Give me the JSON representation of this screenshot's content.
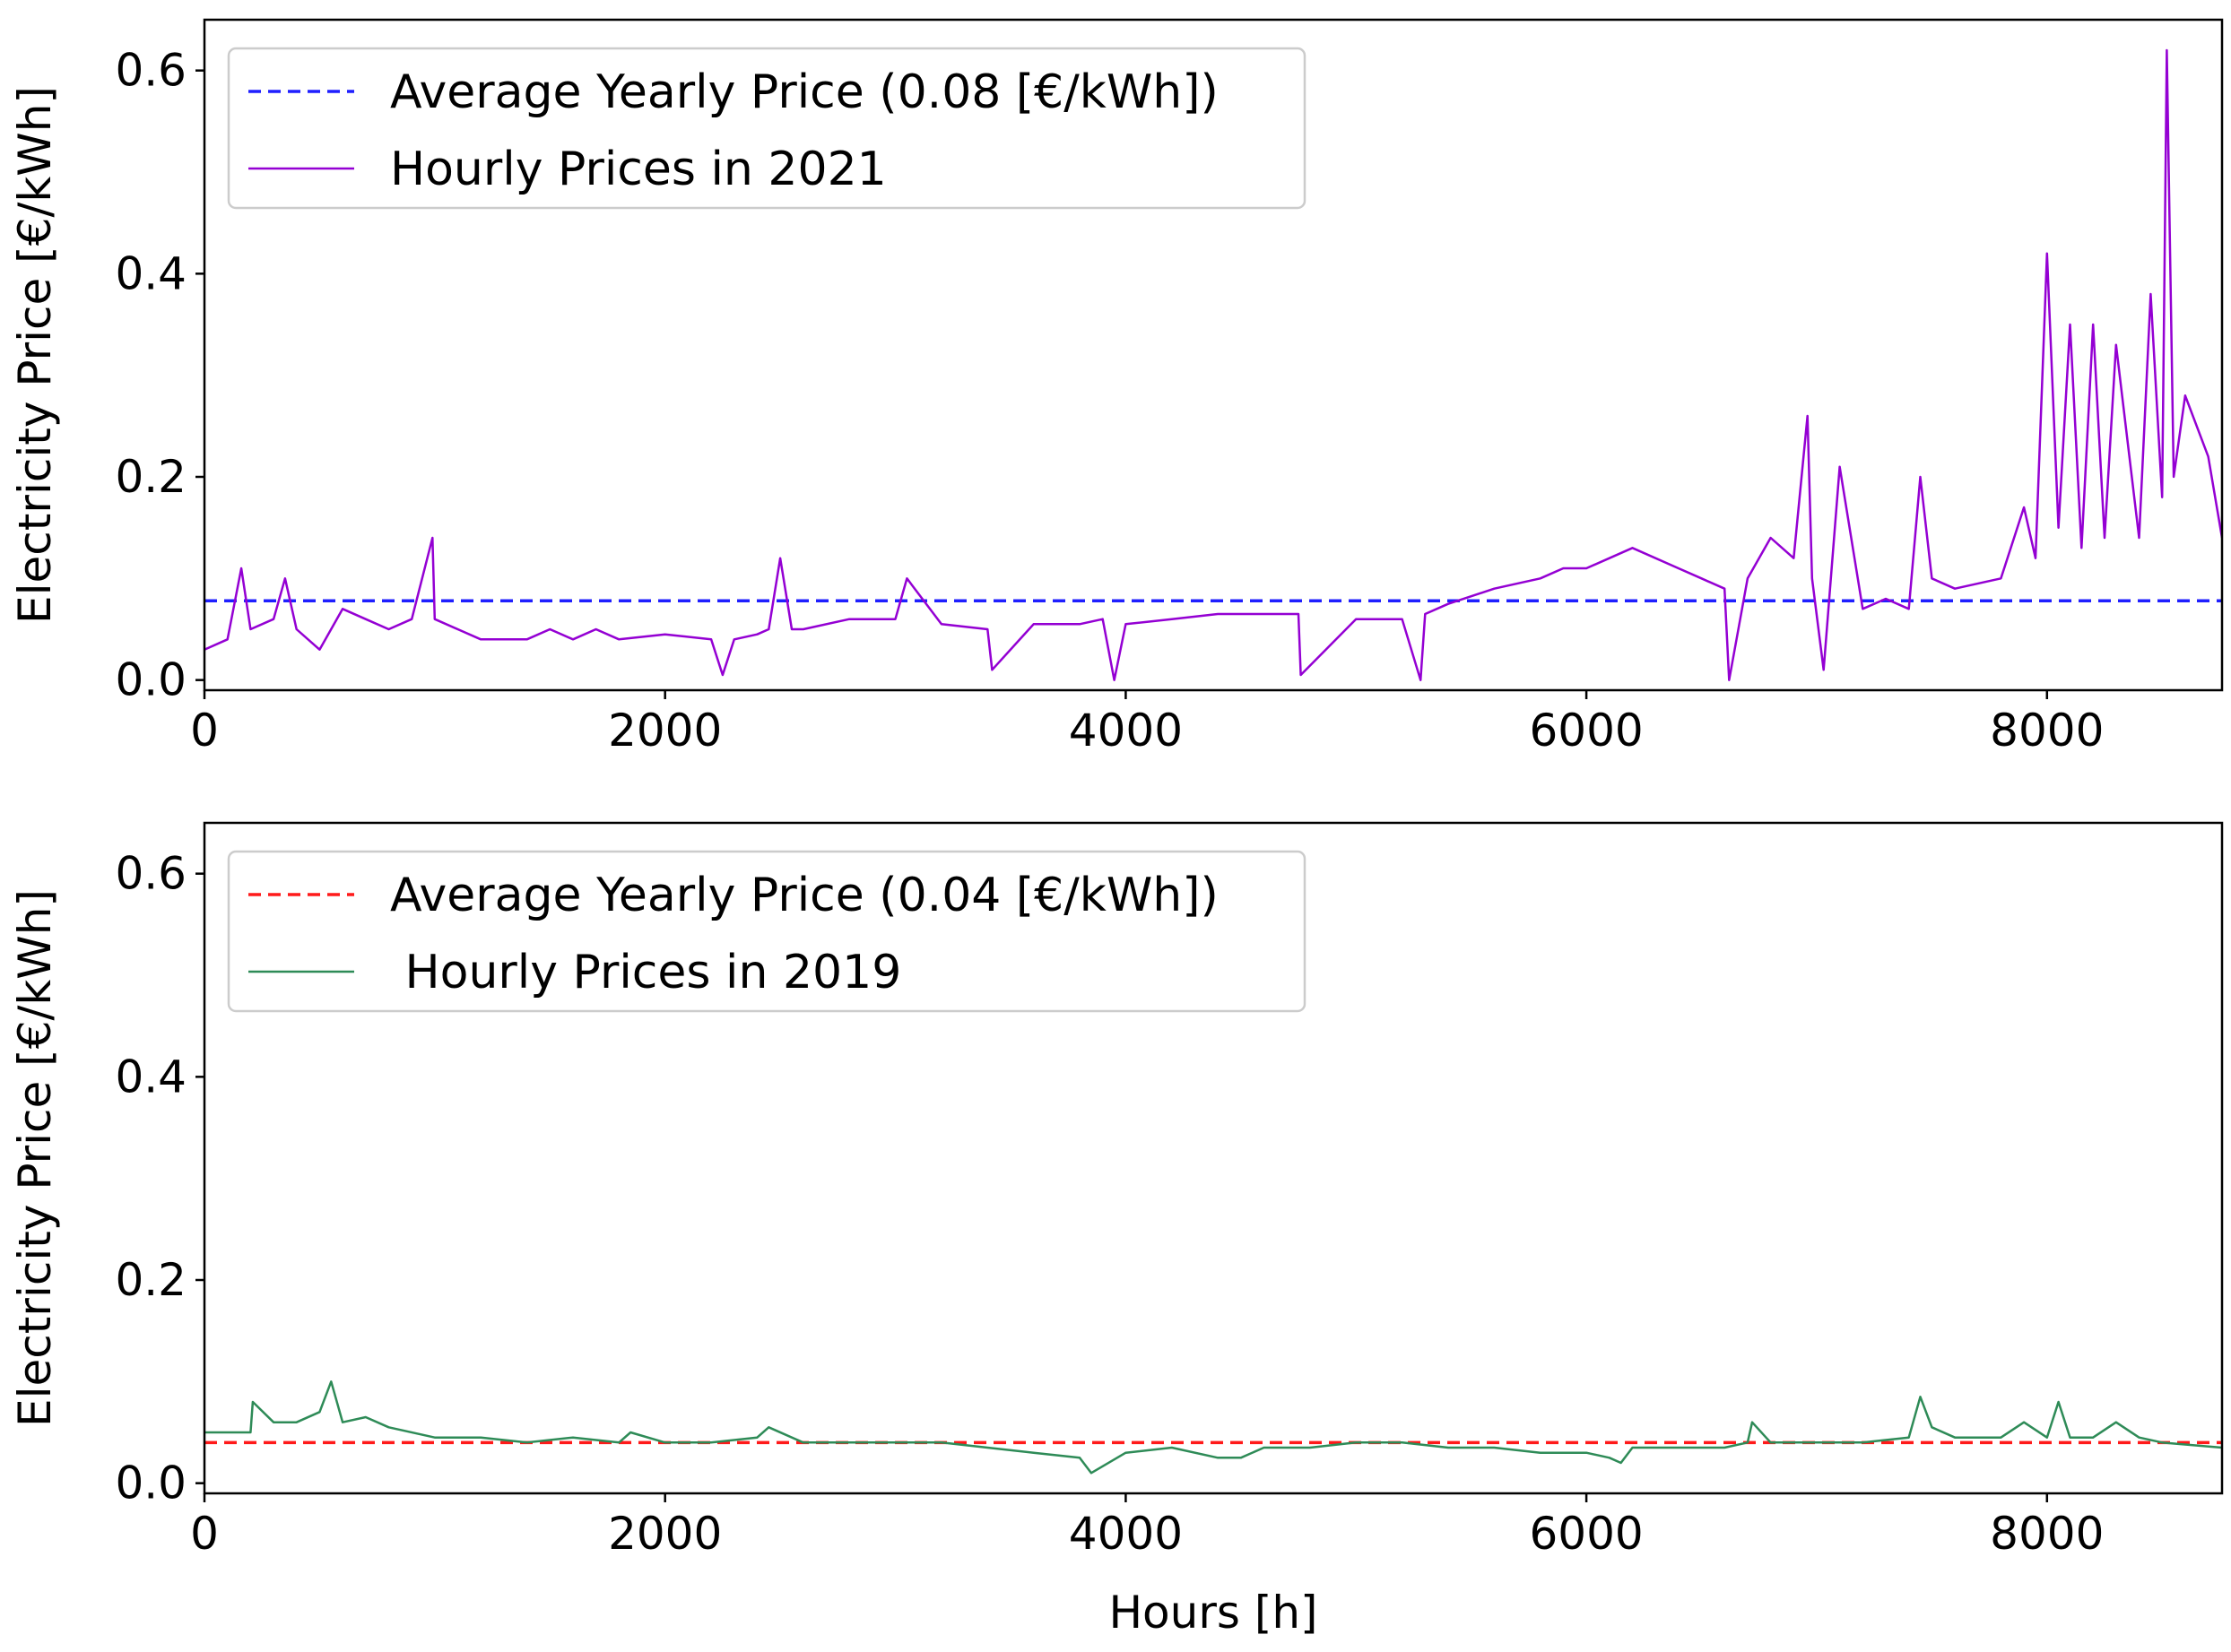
{
  "chart_data": [
    {
      "type": "line",
      "panel": "top",
      "title": "",
      "xlabel": "",
      "ylabel": "Electricity Price [€/kWh]",
      "xlim": [
        0,
        8760
      ],
      "ylim": [
        -0.01,
        0.65
      ],
      "xticks": [
        0,
        2000,
        4000,
        6000,
        8000
      ],
      "xtick_labels": [
        "0",
        "2000",
        "4000",
        "6000",
        "8000"
      ],
      "yticks": [
        0.0,
        0.2,
        0.4,
        0.6
      ],
      "ytick_labels": [
        "0.0",
        "0.2",
        "0.4",
        "0.6"
      ],
      "grid": false,
      "legend_position": "upper-left",
      "series": [
        {
          "name": "Average Yearly Price (0.08 [€/kWh])",
          "kind": "hline",
          "style": "dashed",
          "color": "#1f1fff",
          "y": 0.078
        },
        {
          "name": "Hourly Prices in 2021",
          "kind": "line",
          "style": "solid",
          "color": "#9400d3",
          "x": [
            0,
            100,
            160,
            200,
            300,
            350,
            400,
            500,
            600,
            700,
            800,
            900,
            990,
            1000,
            1100,
            1200,
            1300,
            1400,
            1500,
            1600,
            1700,
            1800,
            2000,
            2200,
            2250,
            2300,
            2400,
            2450,
            2500,
            2550,
            2600,
            2800,
            2900,
            3000,
            3050,
            3200,
            3400,
            3420,
            3600,
            3800,
            3900,
            3950,
            4000,
            4200,
            4400,
            4600,
            4750,
            4760,
            5000,
            5200,
            5280,
            5300,
            5400,
            5600,
            5800,
            5900,
            6000,
            6100,
            6200,
            6400,
            6500,
            6600,
            6620,
            6700,
            6800,
            6900,
            6960,
            6980,
            7030,
            7100,
            7200,
            7300,
            7400,
            7450,
            7500,
            7600,
            7800,
            7900,
            7950,
            8000,
            8050,
            8100,
            8150,
            8200,
            8250,
            8300,
            8400,
            8450,
            8500,
            8520,
            8550,
            8600,
            8700,
            8760
          ],
          "y": [
            0.03,
            0.04,
            0.11,
            0.05,
            0.06,
            0.1,
            0.05,
            0.03,
            0.07,
            0.06,
            0.05,
            0.06,
            0.14,
            0.06,
            0.05,
            0.04,
            0.04,
            0.04,
            0.05,
            0.04,
            0.05,
            0.04,
            0.045,
            0.04,
            0.005,
            0.04,
            0.045,
            0.05,
            0.12,
            0.05,
            0.05,
            0.06,
            0.06,
            0.06,
            0.1,
            0.055,
            0.05,
            0.01,
            0.055,
            0.055,
            0.06,
            0.0,
            0.055,
            0.06,
            0.065,
            0.065,
            0.065,
            0.005,
            0.06,
            0.06,
            0.0,
            0.065,
            0.075,
            0.09,
            0.1,
            0.11,
            0.11,
            0.12,
            0.13,
            0.11,
            0.1,
            0.09,
            0.0,
            0.1,
            0.14,
            0.12,
            0.26,
            0.1,
            0.01,
            0.21,
            0.07,
            0.08,
            0.07,
            0.2,
            0.1,
            0.09,
            0.1,
            0.17,
            0.12,
            0.42,
            0.15,
            0.35,
            0.13,
            0.35,
            0.14,
            0.33,
            0.14,
            0.38,
            0.18,
            0.62,
            0.2,
            0.28,
            0.22,
            0.14
          ]
        }
      ]
    },
    {
      "type": "line",
      "panel": "bottom",
      "title": "",
      "xlabel": "Hours [h]",
      "ylabel": "Electricity Price [€/kWh]",
      "xlim": [
        0,
        8760
      ],
      "ylim": [
        -0.01,
        0.65
      ],
      "xticks": [
        0,
        2000,
        4000,
        6000,
        8000
      ],
      "xtick_labels": [
        "0",
        "2000",
        "4000",
        "6000",
        "8000"
      ],
      "yticks": [
        0.0,
        0.2,
        0.4,
        0.6
      ],
      "ytick_labels": [
        "0.0",
        "0.2",
        "0.4",
        "0.6"
      ],
      "grid": false,
      "legend_position": "upper-left",
      "series": [
        {
          "name": "Average Yearly Price (0.04 [€/kWh])",
          "kind": "hline",
          "style": "dashed",
          "color": "#ff1a1a",
          "y": 0.04
        },
        {
          "name": " Hourly Prices in 2019",
          "kind": "line",
          "style": "solid",
          "color": "#2e8b57",
          "x": [
            0,
            100,
            200,
            210,
            300,
            400,
            500,
            550,
            600,
            700,
            800,
            1000,
            1200,
            1400,
            1600,
            1800,
            1850,
            2000,
            2200,
            2400,
            2450,
            2600,
            2800,
            3000,
            3200,
            3400,
            3600,
            3800,
            3850,
            4000,
            4200,
            4400,
            4500,
            4600,
            4800,
            5000,
            5200,
            5400,
            5600,
            5800,
            6000,
            6100,
            6150,
            6200,
            6400,
            6600,
            6700,
            6720,
            6800,
            7000,
            7200,
            7400,
            7450,
            7500,
            7600,
            7800,
            7900,
            8000,
            8050,
            8100,
            8200,
            8300,
            8400,
            8500,
            8760
          ],
          "y": [
            0.05,
            0.05,
            0.05,
            0.08,
            0.06,
            0.06,
            0.07,
            0.1,
            0.06,
            0.065,
            0.055,
            0.045,
            0.045,
            0.04,
            0.045,
            0.04,
            0.05,
            0.04,
            0.04,
            0.045,
            0.055,
            0.04,
            0.04,
            0.04,
            0.04,
            0.035,
            0.03,
            0.025,
            0.01,
            0.03,
            0.035,
            0.025,
            0.025,
            0.035,
            0.035,
            0.04,
            0.04,
            0.035,
            0.035,
            0.03,
            0.03,
            0.025,
            0.02,
            0.035,
            0.035,
            0.035,
            0.04,
            0.06,
            0.04,
            0.04,
            0.04,
            0.045,
            0.085,
            0.055,
            0.045,
            0.045,
            0.06,
            0.045,
            0.08,
            0.045,
            0.045,
            0.06,
            0.045,
            0.04,
            0.035
          ]
        }
      ]
    }
  ]
}
